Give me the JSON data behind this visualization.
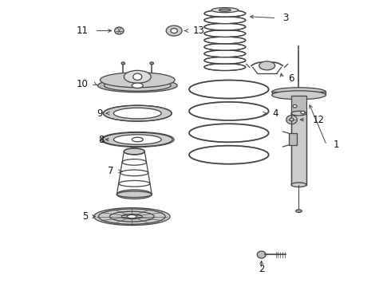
{
  "bg_color": "#ffffff",
  "line_color": "#444444",
  "text_color": "#111111",
  "fig_width": 4.9,
  "fig_height": 3.6,
  "dpi": 100,
  "xlim": [
    0,
    4.9
  ],
  "ylim": [
    0,
    3.6
  ]
}
